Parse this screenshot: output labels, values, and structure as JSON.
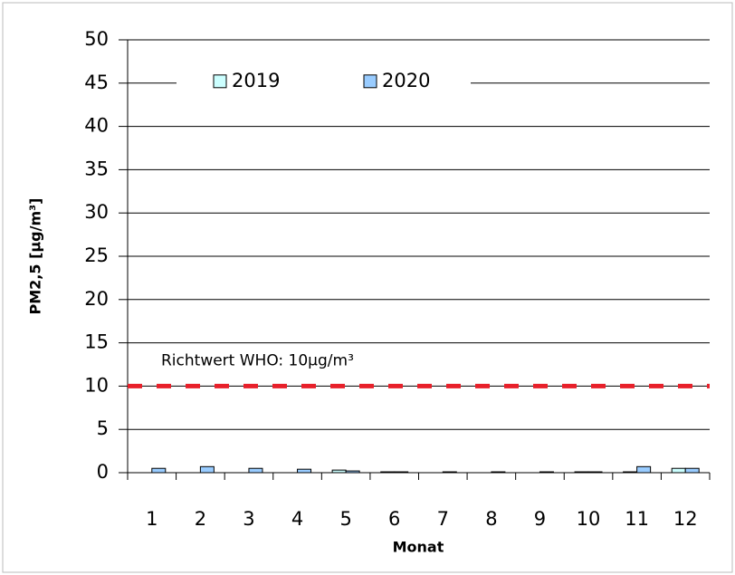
{
  "chart_data": {
    "type": "bar",
    "x_label": "Monat",
    "y_label": "PM2,5 [µg/m³]",
    "categories": [
      "1",
      "2",
      "3",
      "4",
      "5",
      "6",
      "7",
      "8",
      "9",
      "10",
      "11",
      "12"
    ],
    "series": [
      {
        "name": "2019",
        "color": "#ccffff",
        "values": [
          0,
          0,
          0,
          0,
          0.3,
          0.1,
          0,
          0,
          0,
          0.1,
          0.1,
          0.5
        ]
      },
      {
        "name": "2020",
        "color": "#99ccff",
        "values": [
          0.5,
          0.7,
          0.5,
          0.4,
          0.2,
          0.1,
          0.1,
          0.1,
          0.1,
          0.1,
          0.7,
          0.5
        ]
      }
    ],
    "ylim": [
      0,
      50
    ],
    "yticks": [
      0,
      5,
      10,
      15,
      20,
      25,
      30,
      35,
      40,
      45,
      50
    ],
    "grid": true,
    "reference": {
      "value": 10,
      "label": "Richtwert WHO: 10µg/m³",
      "color": "#e8202a"
    },
    "legend": "top"
  }
}
